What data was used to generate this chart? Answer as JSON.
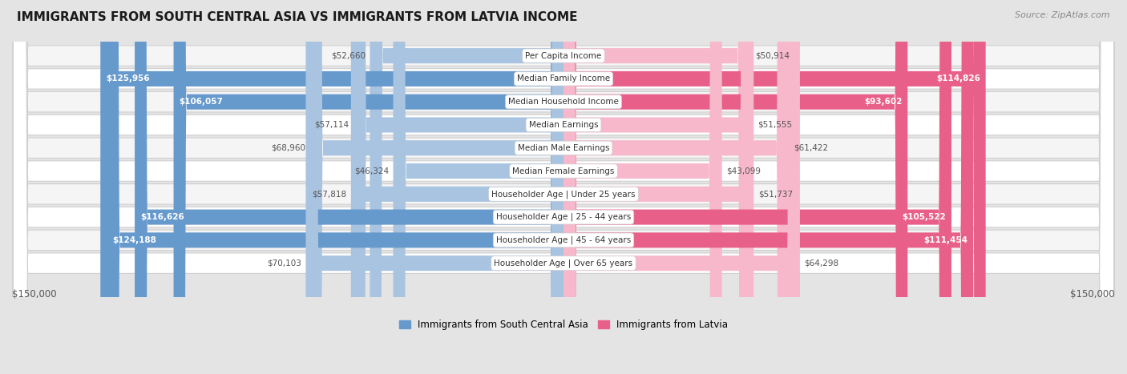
{
  "title": "IMMIGRANTS FROM SOUTH CENTRAL ASIA VS IMMIGRANTS FROM LATVIA INCOME",
  "source": "Source: ZipAtlas.com",
  "categories": [
    "Per Capita Income",
    "Median Family Income",
    "Median Household Income",
    "Median Earnings",
    "Median Male Earnings",
    "Median Female Earnings",
    "Householder Age | Under 25 years",
    "Householder Age | 25 - 44 years",
    "Householder Age | 45 - 64 years",
    "Householder Age | Over 65 years"
  ],
  "left_values": [
    52660,
    125956,
    106057,
    57114,
    68960,
    46324,
    57818,
    116626,
    124188,
    70103
  ],
  "right_values": [
    50914,
    114826,
    93602,
    51555,
    61422,
    43099,
    51737,
    105522,
    111454,
    64298
  ],
  "left_labels": [
    "$52,660",
    "$125,956",
    "$106,057",
    "$57,114",
    "$68,960",
    "$46,324",
    "$57,818",
    "$116,626",
    "$124,188",
    "$70,103"
  ],
  "right_labels": [
    "$50,914",
    "$114,826",
    "$93,602",
    "$51,555",
    "$61,422",
    "$43,099",
    "$51,737",
    "$105,522",
    "$111,454",
    "$64,298"
  ],
  "left_color_light": "#a8c4e0",
  "left_color_dark": "#6699cc",
  "right_color_light": "#f7b8cb",
  "right_color_dark": "#e8608a",
  "max_value": 150000,
  "legend_left": "Immigrants from South Central Asia",
  "legend_right": "Immigrants from Latvia",
  "fig_bg": "#e4e4e4",
  "row_bg_even": "#f5f5f5",
  "row_bg_odd": "#ffffff",
  "row_border": "#d0d0d0",
  "label_color_inside": "#ffffff",
  "label_color_outside": "#555555",
  "threshold": 85000,
  "title_fontsize": 11,
  "label_fontsize": 7.5,
  "cat_fontsize": 7.5
}
